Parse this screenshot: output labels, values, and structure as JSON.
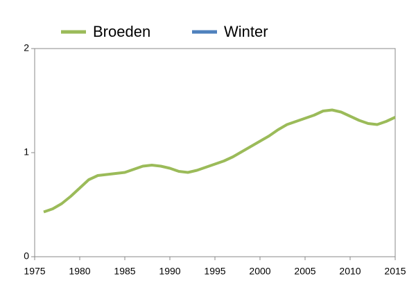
{
  "chart_data": {
    "type": "line",
    "x": [
      1976,
      1977,
      1978,
      1979,
      1980,
      1981,
      1982,
      1983,
      1984,
      1985,
      1986,
      1987,
      1988,
      1989,
      1990,
      1991,
      1992,
      1993,
      1994,
      1995,
      1996,
      1997,
      1998,
      1999,
      2000,
      2001,
      2002,
      2003,
      2004,
      2005,
      2006,
      2007,
      2008,
      2009,
      2010,
      2011,
      2012,
      2013,
      2014,
      2015
    ],
    "series": [
      {
        "name": "Broeden",
        "color": "#9bbb59",
        "values": [
          0.43,
          0.46,
          0.51,
          0.58,
          0.66,
          0.74,
          0.78,
          0.79,
          0.8,
          0.81,
          0.84,
          0.87,
          0.88,
          0.87,
          0.85,
          0.82,
          0.81,
          0.83,
          0.86,
          0.89,
          0.92,
          0.96,
          1.01,
          1.06,
          1.11,
          1.16,
          1.22,
          1.27,
          1.3,
          1.33,
          1.36,
          1.4,
          1.41,
          1.39,
          1.35,
          1.31,
          1.28,
          1.27,
          1.3,
          1.34
        ]
      },
      {
        "name": "Winter",
        "color": "#4f81bd",
        "values": [
          null,
          null,
          null,
          null,
          null,
          null,
          null,
          null,
          null,
          null,
          null,
          null,
          null,
          null,
          null,
          null,
          null,
          null,
          null,
          null,
          null,
          null,
          null,
          null,
          null,
          null,
          null,
          null,
          null,
          null,
          null,
          null,
          null,
          null,
          null,
          null,
          null,
          null,
          null,
          null
        ]
      }
    ],
    "xlim": [
      1975,
      2015
    ],
    "xticks": [
      1975,
      1980,
      1985,
      1990,
      1995,
      2000,
      2005,
      2010,
      2015
    ],
    "ylim": [
      0,
      2
    ],
    "yticks": [
      0,
      1,
      2
    ],
    "legend": "top"
  }
}
